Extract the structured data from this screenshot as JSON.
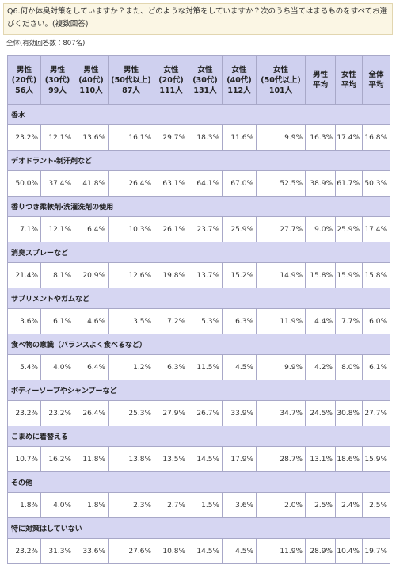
{
  "question": "Q6.何か体臭対策をしていますか？また、どのような対策をしていますか？次のうち当てはまるものをすべてお選びください。(複数回答)",
  "subtitle": "全体(有効回答数：807名)",
  "table": {
    "header": [
      [
        "男性",
        "(20代)",
        "56人"
      ],
      [
        "男性",
        "(30代)",
        "99人"
      ],
      [
        "男性",
        "(40代)",
        "110人"
      ],
      [
        "男性",
        "(50代以上)",
        "87人"
      ],
      [
        "女性",
        "(20代)",
        "111人"
      ],
      [
        "女性",
        "(30代)",
        "131人"
      ],
      [
        "女性",
        "(40代)",
        "112人"
      ],
      [
        "女性",
        "(50代以上)",
        "101人"
      ],
      [
        "男性",
        "平均"
      ],
      [
        "女性",
        "平均"
      ],
      [
        "全体",
        "平均"
      ]
    ],
    "rows": [
      {
        "label": "香水",
        "values": [
          "23.2%",
          "12.1%",
          "13.6%",
          "16.1%",
          "29.7%",
          "18.3%",
          "11.6%",
          "9.9%",
          "16.3%",
          "17.4%",
          "16.8%"
        ]
      },
      {
        "label": "デオドラント・制汗剤など",
        "values": [
          "50.0%",
          "37.4%",
          "41.8%",
          "26.4%",
          "63.1%",
          "64.1%",
          "67.0%",
          "52.5%",
          "38.9%",
          "61.7%",
          "50.3%"
        ]
      },
      {
        "label": "香りつき柔軟剤・洗濯洗剤の使用",
        "values": [
          "7.1%",
          "12.1%",
          "6.4%",
          "10.3%",
          "26.1%",
          "23.7%",
          "25.9%",
          "27.7%",
          "9.0%",
          "25.9%",
          "17.4%"
        ]
      },
      {
        "label": "消臭スプレーなど",
        "values": [
          "21.4%",
          "8.1%",
          "20.9%",
          "12.6%",
          "19.8%",
          "13.7%",
          "15.2%",
          "14.9%",
          "15.8%",
          "15.9%",
          "15.8%"
        ]
      },
      {
        "label": "サプリメントやガムなど",
        "values": [
          "3.6%",
          "6.1%",
          "4.6%",
          "3.5%",
          "7.2%",
          "5.3%",
          "6.3%",
          "11.9%",
          "4.4%",
          "7.7%",
          "6.0%"
        ]
      },
      {
        "label": "食べ物の意識（バランスよく食べるなど）",
        "values": [
          "5.4%",
          "4.0%",
          "6.4%",
          "1.2%",
          "6.3%",
          "11.5%",
          "4.5%",
          "9.9%",
          "4.2%",
          "8.0%",
          "6.1%"
        ]
      },
      {
        "label": "ボディーソープやシャンプーなど",
        "values": [
          "23.2%",
          "23.2%",
          "26.4%",
          "25.3%",
          "27.9%",
          "26.7%",
          "33.9%",
          "34.7%",
          "24.5%",
          "30.8%",
          "27.7%"
        ]
      },
      {
        "label": "こまめに着替える",
        "values": [
          "10.7%",
          "16.2%",
          "11.8%",
          "13.8%",
          "13.5%",
          "14.5%",
          "17.9%",
          "28.7%",
          "13.1%",
          "18.6%",
          "15.9%"
        ]
      },
      {
        "label": "その他",
        "values": [
          "1.8%",
          "4.0%",
          "1.8%",
          "2.3%",
          "2.7%",
          "1.5%",
          "3.6%",
          "2.0%",
          "2.5%",
          "2.4%",
          "2.5%"
        ]
      },
      {
        "label": "特に対策はしていない",
        "values": [
          "23.2%",
          "31.3%",
          "33.6%",
          "27.6%",
          "10.8%",
          "14.5%",
          "4.5%",
          "11.9%",
          "28.9%",
          "10.4%",
          "19.7%"
        ]
      }
    ]
  }
}
